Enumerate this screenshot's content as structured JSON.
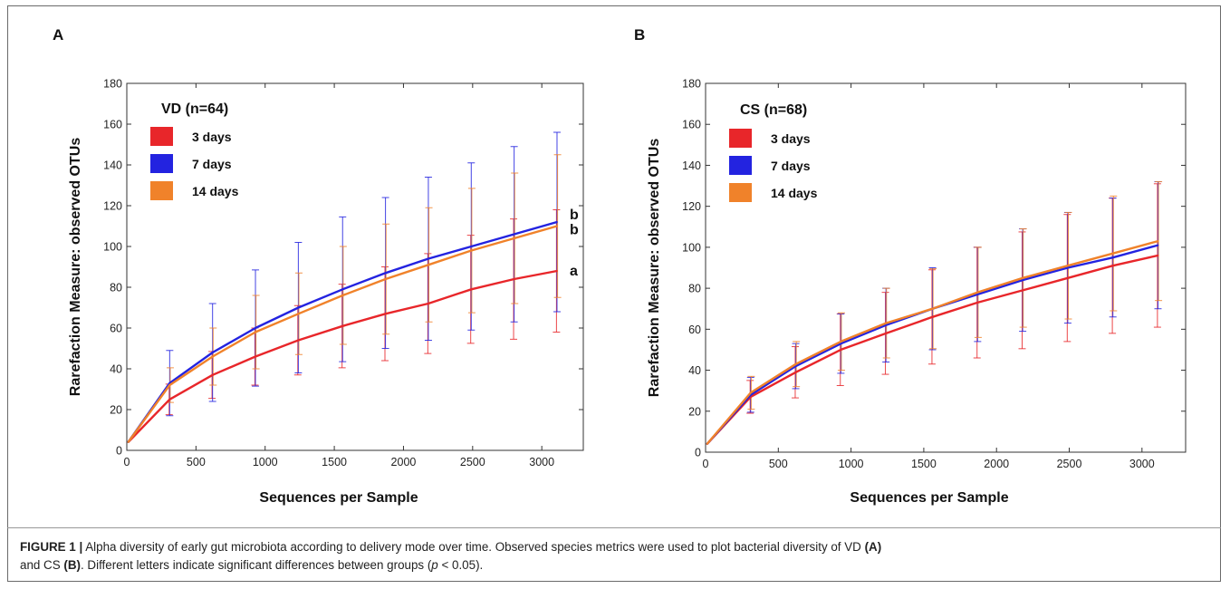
{
  "figure": {
    "caption": {
      "label": "FIGURE 1 |",
      "part1": " Alpha diversity of early gut microbiota according to delivery mode over time. Observed species metrics were used to plot bacterial diversity of VD ",
      "ref_a": "(A)",
      "part2": " and CS ",
      "ref_b": "(B)",
      "part3": ". Different letters indicate significant differences between groups (",
      "p_symbol": "p",
      "part4": " < 0.05)."
    }
  },
  "chart_data": [
    {
      "panel": "A",
      "type": "line",
      "xlabel": "Sequences per Sample",
      "ylabel": "Rarefaction Measure: observed OTUs",
      "xlim": [
        0,
        3300
      ],
      "ylim": [
        0,
        180
      ],
      "xticks": [
        0,
        500,
        1000,
        1500,
        2000,
        2500,
        3000
      ],
      "yticks": [
        0,
        20,
        40,
        60,
        80,
        100,
        120,
        140,
        160,
        180
      ],
      "grid": false,
      "legend_title": "VD (n=64)",
      "legend_position": "top-left",
      "x": [
        10,
        310,
        620,
        930,
        1240,
        1560,
        1870,
        2180,
        2490,
        2800,
        3110
      ],
      "series": [
        {
          "name": "3 days",
          "color": "#e8262a",
          "values": [
            4,
            25,
            37,
            46,
            54,
            61,
            67,
            72,
            79,
            84,
            88
          ],
          "err": [
            0.5,
            7.5,
            11.5,
            14,
            17,
            20.5,
            23,
            24.5,
            26.5,
            29.5,
            30
          ],
          "sig_letter": "a"
        },
        {
          "name": "7 days",
          "color": "#2323e0",
          "values": [
            4,
            33,
            48,
            60,
            70,
            79,
            87,
            94,
            100,
            106,
            112
          ],
          "err": [
            0.5,
            16,
            24,
            28.5,
            32,
            35.5,
            37,
            40,
            41,
            43,
            44
          ],
          "sig_letter": "b"
        },
        {
          "name": "14 days",
          "color": "#f0822a",
          "values": [
            4,
            32,
            46,
            58,
            67,
            76,
            84,
            91,
            98,
            104,
            110
          ],
          "err": [
            0.5,
            8.5,
            14,
            18,
            20,
            24,
            27,
            28,
            30.5,
            32,
            35
          ],
          "sig_letter": "b"
        }
      ]
    },
    {
      "panel": "B",
      "type": "line",
      "xlabel": "Sequences per Sample",
      "ylabel": "Rarefaction Measure: observed OTUs",
      "xlim": [
        0,
        3300
      ],
      "ylim": [
        0,
        180
      ],
      "xticks": [
        0,
        500,
        1000,
        1500,
        2000,
        2500,
        3000
      ],
      "yticks": [
        0,
        20,
        40,
        60,
        80,
        100,
        120,
        140,
        160,
        180
      ],
      "grid": false,
      "legend_title": "CS (n=68)",
      "legend_position": "top-left",
      "x": [
        10,
        310,
        620,
        930,
        1240,
        1560,
        1870,
        2180,
        2490,
        2800,
        3110
      ],
      "series": [
        {
          "name": "3 days",
          "color": "#e8262a",
          "values": [
            4,
            27,
            39,
            50,
            58,
            66,
            73,
            79,
            85,
            91,
            96
          ],
          "err": [
            0.5,
            8,
            12.5,
            17.5,
            20,
            23,
            27,
            28.5,
            31,
            33,
            35
          ]
        },
        {
          "name": "7 days",
          "color": "#2323e0",
          "values": [
            4,
            28,
            42,
            53,
            62,
            70,
            77,
            84,
            90,
            95,
            101
          ],
          "err": [
            0.5,
            8.5,
            11,
            14.5,
            18,
            20,
            23,
            25,
            27,
            29,
            31
          ]
        },
        {
          "name": "14 days",
          "color": "#f0822a",
          "values": [
            4,
            29,
            43,
            54,
            63,
            70,
            78,
            85,
            91,
            97,
            103
          ],
          "err": [
            0.5,
            8,
            11,
            14,
            17,
            19.5,
            22,
            24,
            26,
            28,
            29
          ]
        }
      ]
    }
  ]
}
